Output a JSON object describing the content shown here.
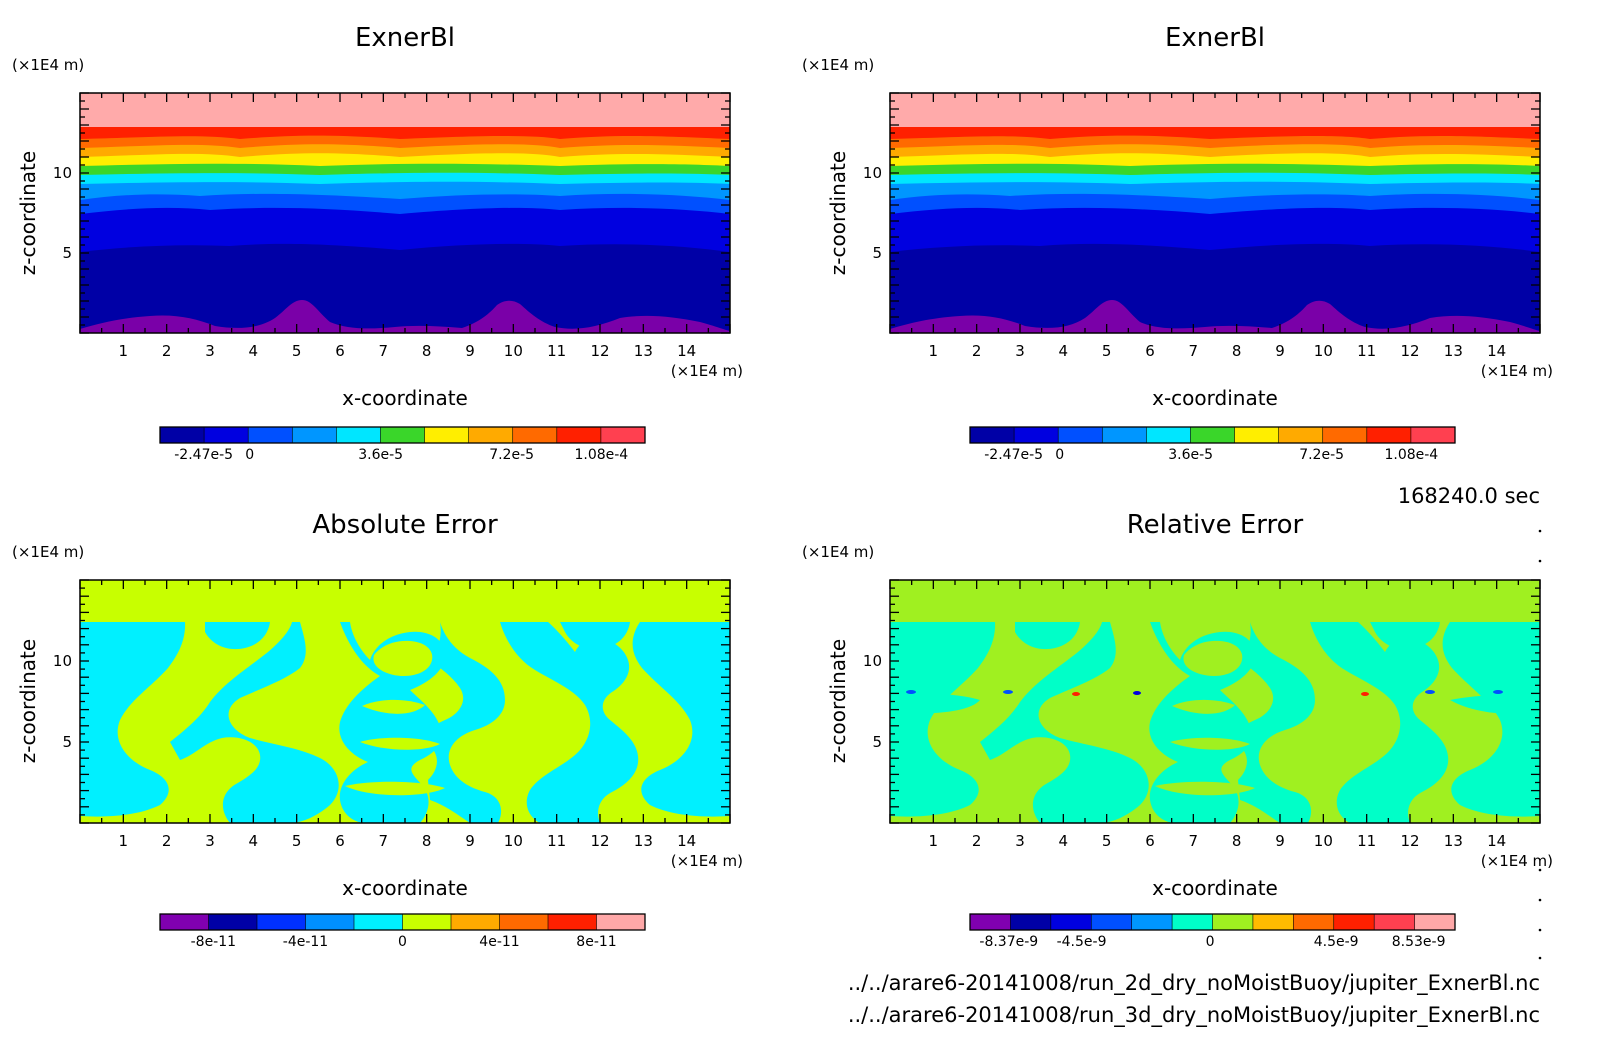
{
  "chart_data": [
    {
      "type": "contour",
      "title": "ExnerBl",
      "xlabel": "x-coordinate",
      "ylabel": "z-coordinate",
      "x_unit": "(×1E4 m)",
      "y_unit": "(×1E4 m)",
      "xlim": [
        0,
        15
      ],
      "ylim": [
        0,
        15
      ],
      "x_ticks": [
        "1",
        "2",
        "3",
        "4",
        "5",
        "6",
        "7",
        "8",
        "9",
        "10",
        "11",
        "12",
        "13",
        "14"
      ],
      "y_ticks": [
        "5",
        "10"
      ],
      "colorbar": {
        "colors": [
          "#0000a6",
          "#0000e0",
          "#0050ff",
          "#0096ff",
          "#00e6ff",
          "#3ad62a",
          "#ffee00",
          "#ffaa00",
          "#ff6a00",
          "#ff2000",
          "#ff4050"
        ],
        "tick_labels": [
          "-2.47e-5",
          "0",
          "3.6e-5",
          "7.2e-5",
          "1.08e-4"
        ]
      }
    },
    {
      "type": "contour",
      "title": "ExnerBl",
      "xlabel": "x-coordinate",
      "ylabel": "z-coordinate",
      "x_unit": "(×1E4 m)",
      "y_unit": "(×1E4 m)",
      "xlim": [
        0,
        15
      ],
      "ylim": [
        0,
        15
      ],
      "x_ticks": [
        "1",
        "2",
        "3",
        "4",
        "5",
        "6",
        "7",
        "8",
        "9",
        "10",
        "11",
        "12",
        "13",
        "14"
      ],
      "y_ticks": [
        "5",
        "10"
      ],
      "colorbar": {
        "colors": [
          "#0000a6",
          "#0000e0",
          "#0050ff",
          "#0096ff",
          "#00e6ff",
          "#3ad62a",
          "#ffee00",
          "#ffaa00",
          "#ff6a00",
          "#ff2000",
          "#ff4050"
        ],
        "tick_labels": [
          "-2.47e-5",
          "0",
          "3.6e-5",
          "7.2e-5",
          "1.08e-4"
        ]
      }
    },
    {
      "type": "contour",
      "title": "Absolute Error",
      "xlabel": "x-coordinate",
      "ylabel": "z-coordinate",
      "x_unit": "(×1E4 m)",
      "y_unit": "(×1E4 m)",
      "xlim": [
        0,
        15
      ],
      "ylim": [
        0,
        15
      ],
      "x_ticks": [
        "1",
        "2",
        "3",
        "4",
        "5",
        "6",
        "7",
        "8",
        "9",
        "10",
        "11",
        "12",
        "13",
        "14"
      ],
      "y_ticks": [
        "5",
        "10"
      ],
      "colorbar": {
        "colors": [
          "#8000b0",
          "#0000a6",
          "#0030ff",
          "#0090ff",
          "#00f0ff",
          "#c8ff00",
          "#ffaa00",
          "#ff6a00",
          "#ff2000",
          "#ffa8a8"
        ],
        "tick_labels": [
          "-8e-11",
          "-4e-11",
          "0",
          "4e-11",
          "8e-11"
        ]
      }
    },
    {
      "type": "contour",
      "title": "Relative Error",
      "xlabel": "x-coordinate",
      "ylabel": "z-coordinate",
      "x_unit": "(×1E4 m)",
      "y_unit": "(×1E4 m)",
      "xlim": [
        0,
        15
      ],
      "ylim": [
        0,
        15
      ],
      "x_ticks": [
        "1",
        "2",
        "3",
        "4",
        "5",
        "6",
        "7",
        "8",
        "9",
        "10",
        "11",
        "12",
        "13",
        "14"
      ],
      "y_ticks": [
        "5",
        "10"
      ],
      "colorbar": {
        "colors": [
          "#8000b0",
          "#0000a6",
          "#0000e0",
          "#0050ff",
          "#0096ff",
          "#00ffc8",
          "#a0f020",
          "#ffbb00",
          "#ff6a00",
          "#ff2000",
          "#ff4050",
          "#ffa8a8"
        ],
        "tick_labels": [
          "-8.37e-9",
          "-4.5e-9",
          "0",
          "4.5e-9",
          "8.53e-9"
        ]
      }
    }
  ],
  "info": {
    "time": "168240.0 sec",
    "file1": "../../arare6-20141008/run_2d_dry_noMoistBuoy/jupiter_ExnerBl.nc",
    "file2": "../../arare6-20141008/run_3d_dry_noMoistBuoy/jupiter_ExnerBl.nc"
  }
}
